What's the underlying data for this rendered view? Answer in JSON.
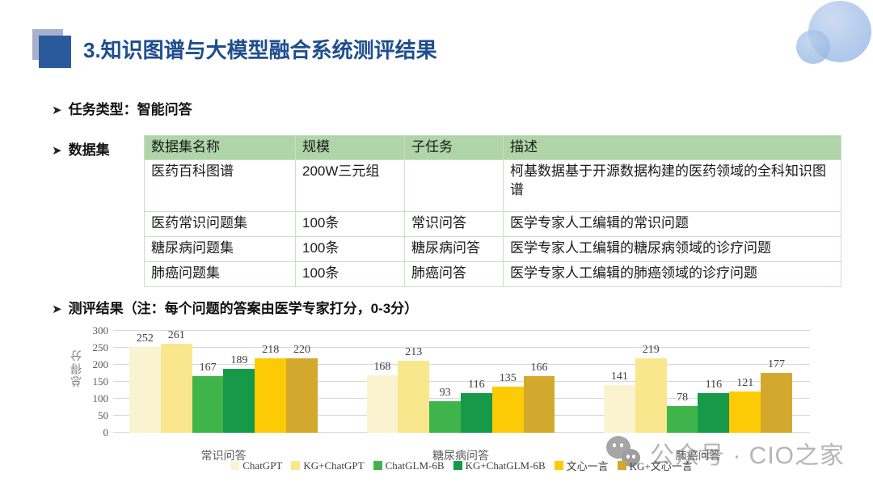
{
  "title": "3.知识图谱与大模型融合系统测评结果",
  "bullets": {
    "task_type": "任务类型：智能问答",
    "dataset": "数据集",
    "results": "测评结果（注：每个问题的答案由医学专家打分，0-3分）"
  },
  "table": {
    "headers": [
      "数据集名称",
      "规模",
      "子任务",
      "描述"
    ],
    "rows": [
      [
        "医药百科图谱",
        "200W三元组",
        "",
        "柯基数据基于开源数据构建的医药领域的全科知识图谱"
      ],
      [
        "医药常识问题集",
        "100条",
        "常识问答",
        "医学专家人工编辑的常识问题"
      ],
      [
        "糖尿病问题集",
        "100条",
        "糖尿病问答",
        "医学专家人工编辑的糖尿病领域的诊疗问题"
      ],
      [
        "肺癌问题集",
        "100条",
        "肺癌问答",
        "医学专家人工编辑的肺癌领域的诊疗问题"
      ]
    ]
  },
  "chart_data": {
    "type": "bar",
    "title": "",
    "xlabel": "",
    "ylabel": "总得分",
    "ylim": [
      0,
      300
    ],
    "ytick_step": 50,
    "grid": true,
    "legend_position": "bottom",
    "categories": [
      "常识问答",
      "糖尿病问答",
      "肺癌问答"
    ],
    "series": [
      {
        "name": "ChatGPT",
        "color": "#faf3d0",
        "values": [
          252,
          168,
          141
        ]
      },
      {
        "name": "KG+ChatGPT",
        "color": "#f9e78d",
        "values": [
          261,
          213,
          219
        ]
      },
      {
        "name": "ChatGLM-6B",
        "color": "#3fb44a",
        "values": [
          167,
          93,
          78
        ]
      },
      {
        "name": "KG+ChatGLM-6B",
        "color": "#169a4a",
        "values": [
          189,
          116,
          116
        ]
      },
      {
        "name": "文心一言",
        "color": "#fdcb06",
        "values": [
          218,
          135,
          121
        ]
      },
      {
        "name": "KG+文心一言",
        "color": "#d2a92d",
        "values": [
          220,
          166,
          177
        ]
      }
    ]
  },
  "watermark": {
    "text": "公众号 · CIO之家",
    "icon": "wechat-bubbles-icon"
  },
  "colors": {
    "title_text": "#1f4e8f",
    "title_square": "#2a5a9c",
    "title_square_shadow": "#99a2c3",
    "table_header_bg": "#afd5a9",
    "table_border": "#c6e2c0",
    "gridline": "#d9d9d9",
    "decor_circle": "#9bbae6"
  }
}
